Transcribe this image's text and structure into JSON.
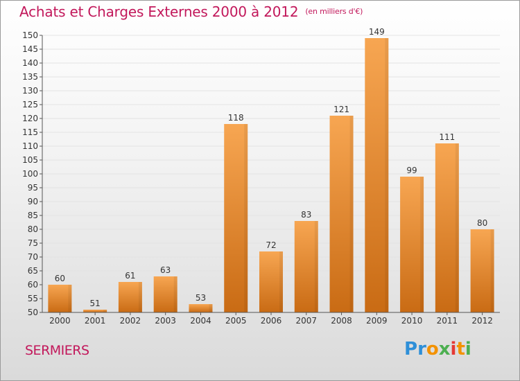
{
  "chart": {
    "title": "Achats et Charges Externes 2000 à 2012",
    "unit": "(en milliers d'€)",
    "commune": "SERMIERS"
  },
  "logo": {
    "text": "Proxiti",
    "letter_colors": [
      "#2e8fd8",
      "#2e8fd8",
      "#f39200",
      "#4caf50",
      "#e53935",
      "#f39200",
      "#4caf50"
    ]
  },
  "colors": {
    "bar_light": "#f7a652",
    "bar_dark": "#c96b14",
    "title": "#c2185b",
    "axis_text": "#333333",
    "grid": "#e3e3e3"
  },
  "chart_data": {
    "type": "bar",
    "categories": [
      "2000",
      "2001",
      "2002",
      "2003",
      "2004",
      "2005",
      "2006",
      "2007",
      "2008",
      "2009",
      "2010",
      "2011",
      "2012"
    ],
    "values": [
      60,
      51,
      61,
      63,
      53,
      118,
      72,
      83,
      121,
      149,
      99,
      111,
      80
    ],
    "ylim": [
      50,
      150
    ],
    "ytick_step": 5,
    "grid": true,
    "title": "Achats et Charges Externes 2000 à 2012",
    "xlabel": "",
    "ylabel": ""
  }
}
